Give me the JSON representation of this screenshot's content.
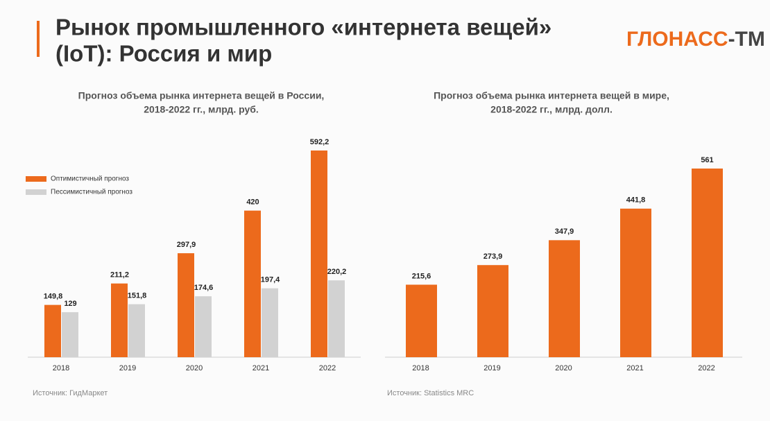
{
  "header": {
    "title": [
      "Рынок промышленного «интернета вещей»",
      "(IoT): Россия и мир"
    ],
    "logo": {
      "main": "ГЛОНАСС",
      "suffix": "-ТМ"
    }
  },
  "chart_data": [
    {
      "type": "bar",
      "title": [
        "Прогноз объема рынка интернета вещей в России,",
        "2018-2022 гг., млрд. руб."
      ],
      "categories": [
        "2018",
        "2019",
        "2020",
        "2021",
        "2022"
      ],
      "series": [
        {
          "name": "Оптимистичный прогноз",
          "color": "#ec6a1c",
          "values": [
            149.8,
            211.2,
            297.9,
            420,
            592.2
          ],
          "value_labels": [
            "149,8",
            "211,2",
            "297,9",
            "420",
            "592,2"
          ]
        },
        {
          "name": "Пессимистичный прогноз",
          "color": "#d2d2d2",
          "values": [
            129,
            151.8,
            174.6,
            197.4,
            220.2
          ],
          "value_labels": [
            "129",
            "151,8",
            "174,6",
            "197,4",
            "220,2"
          ]
        }
      ],
      "source": "Источник: ГидМаркет"
    },
    {
      "type": "bar",
      "title": [
        "Прогноз объема рынка интернета вещей в мире,",
        "2018-2022 гг., млрд. долл."
      ],
      "categories": [
        "2018",
        "2019",
        "2020",
        "2021",
        "2022"
      ],
      "values": [
        215.6,
        273.9,
        347.9,
        441.8,
        561
      ],
      "value_labels": [
        "215,6",
        "273,9",
        "347,9",
        "441,8",
        "561"
      ],
      "color": "#ec6a1c",
      "source": "Источник: Statistics MRC"
    }
  ]
}
